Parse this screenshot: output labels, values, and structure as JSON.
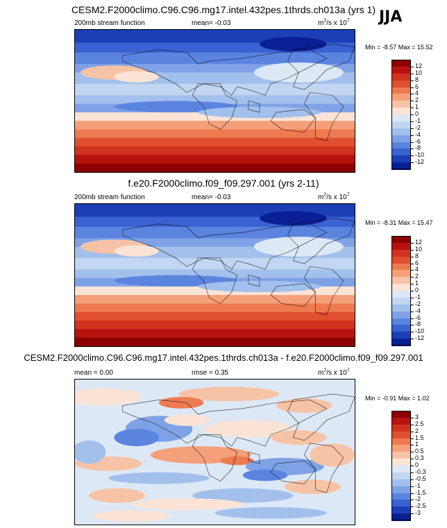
{
  "season": "JJA",
  "panels": [
    {
      "title": "CESM2.F2000climo.C96.C96.mg17.intel.432pes.1thrds.ch013a (yrs 1)",
      "left_label": "200mb stream function",
      "mid_label": "mean=  -0.03",
      "units_base": "m",
      "units_exp": "2",
      "units_mid": "/s x 10",
      "units_pow": "7",
      "minmax": "Min =  -8.57 Max =  15.52",
      "kind": "field"
    },
    {
      "title": "f.e20.F2000climo.f09_f09.297.001 (yrs 2-11)",
      "left_label": "200mb stream function",
      "mid_label": "mean=  -0.03",
      "units_base": "m",
      "units_exp": "2",
      "units_mid": "/s x 10",
      "units_pow": "7",
      "minmax": "Min =  -8.31 Max =  15.47",
      "kind": "field"
    },
    {
      "title": "CESM2.F2000climo.C96.C96.mg17.intel.432pes.1thrds.ch013a - f.e20.F2000climo.f09_f09.297.001",
      "left_label": "mean =   0.00",
      "mid_label": "rmse =   0.35",
      "units_base": "m",
      "units_exp": "2",
      "units_mid": "/s x 10",
      "units_pow": "7",
      "minmax": "Min =  -0.91 Max =  1.02",
      "kind": "diff"
    }
  ],
  "chart_data": [
    {
      "type": "heatmap",
      "title": "CESM2.F2000climo.C96.C96.mg17.intel.432pes.1thrds.ch013a (yrs 1)",
      "variable": "200mb stream function",
      "mean": -0.03,
      "min": -8.57,
      "max": 15.52,
      "colorbar_levels": [
        12,
        10,
        8,
        6,
        4,
        2,
        1,
        0,
        -1,
        -2,
        -4,
        -6,
        -8,
        -10,
        -12
      ],
      "colors": [
        "#8b0000",
        "#b8120f",
        "#d0331f",
        "#e0502f",
        "#ee7a50",
        "#f5a07a",
        "#f7c3a6",
        "#fbe4d6",
        "#dde8f6",
        "#c2d6f1",
        "#a3c0ec",
        "#7fa2e6",
        "#5b84df",
        "#3a62d2",
        "#1c3fb8",
        "#0b1f95"
      ]
    },
    {
      "type": "heatmap",
      "title": "f.e20.F2000climo.f09_f09.297.001 (yrs 2-11)",
      "variable": "200mb stream function",
      "mean": -0.03,
      "min": -8.31,
      "max": 15.47,
      "colorbar_levels": [
        12,
        10,
        8,
        6,
        4,
        2,
        1,
        0,
        -1,
        -2,
        -4,
        -6,
        -8,
        -10,
        -12
      ],
      "colors": [
        "#8b0000",
        "#b8120f",
        "#d0331f",
        "#e0502f",
        "#ee7a50",
        "#f5a07a",
        "#f7c3a6",
        "#fbe4d6",
        "#dde8f6",
        "#c2d6f1",
        "#a3c0ec",
        "#7fa2e6",
        "#5b84df",
        "#3a62d2",
        "#1c3fb8",
        "#0b1f95"
      ]
    },
    {
      "type": "heatmap",
      "title": "CESM2.F2000climo.C96.C96.mg17.intel.432pes.1thrds.ch013a - f.e20.F2000climo.f09_f09.297.001",
      "mean": 0.0,
      "rmse": 0.35,
      "min": -0.91,
      "max": 1.02,
      "colorbar_levels": [
        "3",
        "2.5",
        "2",
        "1.5",
        "1",
        "0.5",
        "0.3",
        "0",
        "-0.3",
        "-0.5",
        "-1",
        "-1.5",
        "-2",
        "-2.5",
        "-3"
      ],
      "colors": [
        "#8b0000",
        "#b8120f",
        "#d0331f",
        "#e0502f",
        "#ee7a50",
        "#f5a07a",
        "#f7c3a6",
        "#fbe4d6",
        "#dde8f6",
        "#c2d6f1",
        "#a3c0ec",
        "#7fa2e6",
        "#5b84df",
        "#3a62d2",
        "#1c3fb8",
        "#0b1f95"
      ]
    }
  ]
}
